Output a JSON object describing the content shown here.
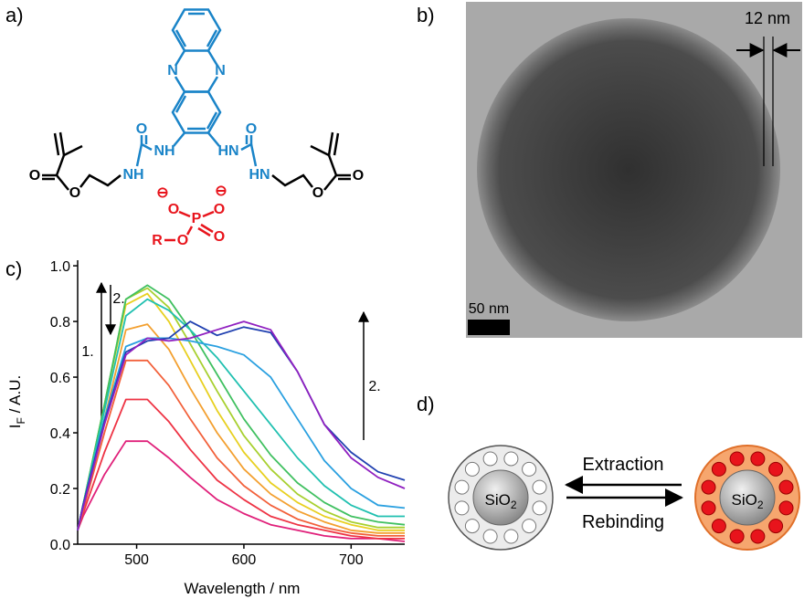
{
  "panel_labels": [
    "a)",
    "b)",
    "c)",
    "d)"
  ],
  "structure": {
    "labels": [
      "N",
      "N",
      "O",
      "NH",
      "NH",
      "O",
      "HN",
      "HN",
      "O",
      "O",
      "O",
      "O",
      "⊖",
      "⊖",
      "O",
      "P",
      "O",
      "O",
      "R",
      "O"
    ]
  },
  "tem": {
    "thickness_label": "12 nm",
    "scale_label": "50 nm"
  },
  "scheme": {
    "left_core": {
      "main": "SiO",
      "sub": "2"
    },
    "right_core": {
      "main": "SiO",
      "sub": "2"
    },
    "forward": "Extraction",
    "backward": "Rebinding"
  },
  "chart_data": {
    "type": "line",
    "x_label": "Wavelength / nm",
    "y_label": {
      "main": "I",
      "sub": "F",
      "rest": " / A.U."
    },
    "annotations": [
      "1.",
      "2.",
      "2."
    ],
    "x": [
      445,
      450,
      470,
      490,
      510,
      530,
      550,
      575,
      600,
      625,
      650,
      675,
      700,
      725,
      750
    ],
    "xlim": [
      445,
      750
    ],
    "xticks": [
      500,
      600,
      700
    ],
    "ylim": [
      0,
      1.02
    ],
    "yticks": [
      {
        "value": 0,
        "label": "0.0"
      },
      0.2,
      0.4,
      0.6,
      0.8,
      {
        "value": 1,
        "label": "1.0"
      }
    ],
    "series": [
      {
        "color": "#e0207a",
        "values": [
          0.05,
          0.1,
          0.25,
          0.37,
          0.37,
          0.31,
          0.24,
          0.16,
          0.11,
          0.07,
          0.05,
          0.03,
          0.02,
          0.02,
          0.01
        ]
      },
      {
        "color": "#ee3344",
        "values": [
          0.05,
          0.11,
          0.33,
          0.52,
          0.52,
          0.44,
          0.34,
          0.23,
          0.16,
          0.1,
          0.07,
          0.05,
          0.03,
          0.02,
          0.02
        ]
      },
      {
        "color": "#f2603a",
        "values": [
          0.05,
          0.12,
          0.4,
          0.66,
          0.66,
          0.57,
          0.45,
          0.31,
          0.21,
          0.14,
          0.09,
          0.06,
          0.04,
          0.03,
          0.03
        ]
      },
      {
        "color": "#f3a030",
        "values": [
          0.05,
          0.13,
          0.45,
          0.77,
          0.79,
          0.7,
          0.56,
          0.4,
          0.27,
          0.18,
          0.12,
          0.08,
          0.05,
          0.04,
          0.04
        ]
      },
      {
        "color": "#e8d020",
        "values": [
          0.05,
          0.14,
          0.5,
          0.86,
          0.9,
          0.8,
          0.66,
          0.48,
          0.33,
          0.22,
          0.15,
          0.1,
          0.07,
          0.05,
          0.05
        ]
      },
      {
        "color": "#a8d030",
        "values": [
          0.05,
          0.14,
          0.5,
          0.88,
          0.92,
          0.85,
          0.72,
          0.55,
          0.39,
          0.27,
          0.18,
          0.12,
          0.08,
          0.06,
          0.06
        ]
      },
      {
        "color": "#40c060",
        "values": [
          0.05,
          0.14,
          0.5,
          0.88,
          0.93,
          0.88,
          0.77,
          0.61,
          0.45,
          0.32,
          0.22,
          0.15,
          0.1,
          0.08,
          0.07
        ]
      },
      {
        "color": "#20c0b0",
        "values": [
          0.05,
          0.14,
          0.48,
          0.82,
          0.88,
          0.84,
          0.77,
          0.67,
          0.55,
          0.43,
          0.31,
          0.21,
          0.14,
          0.1,
          0.1
        ]
      },
      {
        "color": "#2aa0e0",
        "values": [
          0.05,
          0.14,
          0.45,
          0.71,
          0.74,
          0.74,
          0.73,
          0.71,
          0.68,
          0.6,
          0.45,
          0.3,
          0.2,
          0.14,
          0.13
        ]
      },
      {
        "color": "#2040b0",
        "values": [
          0.05,
          0.14,
          0.44,
          0.69,
          0.73,
          0.74,
          0.8,
          0.75,
          0.78,
          0.76,
          0.62,
          0.43,
          0.33,
          0.26,
          0.23
        ]
      },
      {
        "color": "#9020c0",
        "values": [
          0.05,
          0.13,
          0.43,
          0.68,
          0.74,
          0.73,
          0.74,
          0.77,
          0.8,
          0.77,
          0.62,
          0.43,
          0.31,
          0.24,
          0.2
        ]
      }
    ]
  }
}
